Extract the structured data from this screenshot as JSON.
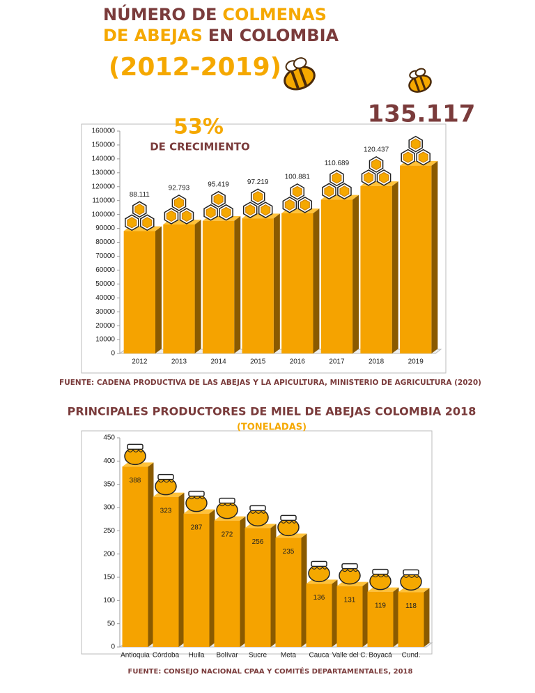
{
  "chart_data": [
    {
      "type": "bar",
      "title_lines": [
        [
          {
            "text": "NÚMERO DE",
            "color": "#7a3b3b"
          },
          {
            "text": "COLMENAS",
            "color": "#f5a800"
          }
        ],
        [
          {
            "text": "DE ABEJAS",
            "color": "#f5a800"
          },
          {
            "text": "EN COLOMBIA",
            "color": "#7a3b3b"
          }
        ]
      ],
      "subtitle": "(2012-2019)",
      "annotations": [
        "53%",
        "DE CRECIMIENTO"
      ],
      "categories": [
        "2012",
        "2013",
        "2014",
        "2015",
        "2016",
        "2017",
        "2018",
        "2019"
      ],
      "values": [
        88111,
        92793,
        95419,
        97219,
        100881,
        110689,
        120437,
        135117
      ],
      "value_labels": [
        "88.111",
        "92.793",
        "95.419",
        "97.219",
        "100.881",
        "110.689",
        "120.437",
        "135.117"
      ],
      "color": "#f5a300",
      "side_color": "#8a5a00",
      "ylim": [
        0,
        160000
      ],
      "yticks": [
        0,
        10000,
        20000,
        30000,
        40000,
        50000,
        60000,
        70000,
        80000,
        90000,
        100000,
        110000,
        120000,
        130000,
        140000,
        150000,
        160000
      ],
      "source": "FUENTE: CADENA PRODUCTIVA DE LAS ABEJAS Y LA APICULTURA, MINISTERIO DE AGRICULTURA (2020)"
    },
    {
      "type": "bar",
      "title": "PRINCIPALES PRODUCTORES DE MIEL DE ABEJAS COLOMBIA 2018",
      "subtitle": "(TONELADAS)",
      "categories": [
        "Antioquia",
        "Córdoba",
        "Huila",
        "Bolívar",
        "Sucre",
        "Meta",
        "Cauca",
        "Valle del C.",
        "Boyacá",
        "Cund."
      ],
      "values": [
        388,
        323,
        287,
        272,
        256,
        235,
        136,
        131,
        119,
        118
      ],
      "color": "#f5a300",
      "side_color": "#8a5a00",
      "ylim": [
        0,
        450
      ],
      "yticks": [
        0,
        50,
        100,
        150,
        200,
        250,
        300,
        350,
        400,
        450
      ],
      "source": "FUENTE: CONSEJO NACIONAL CPAA Y COMITÉS DEPARTAMENTALES, 2018"
    }
  ]
}
